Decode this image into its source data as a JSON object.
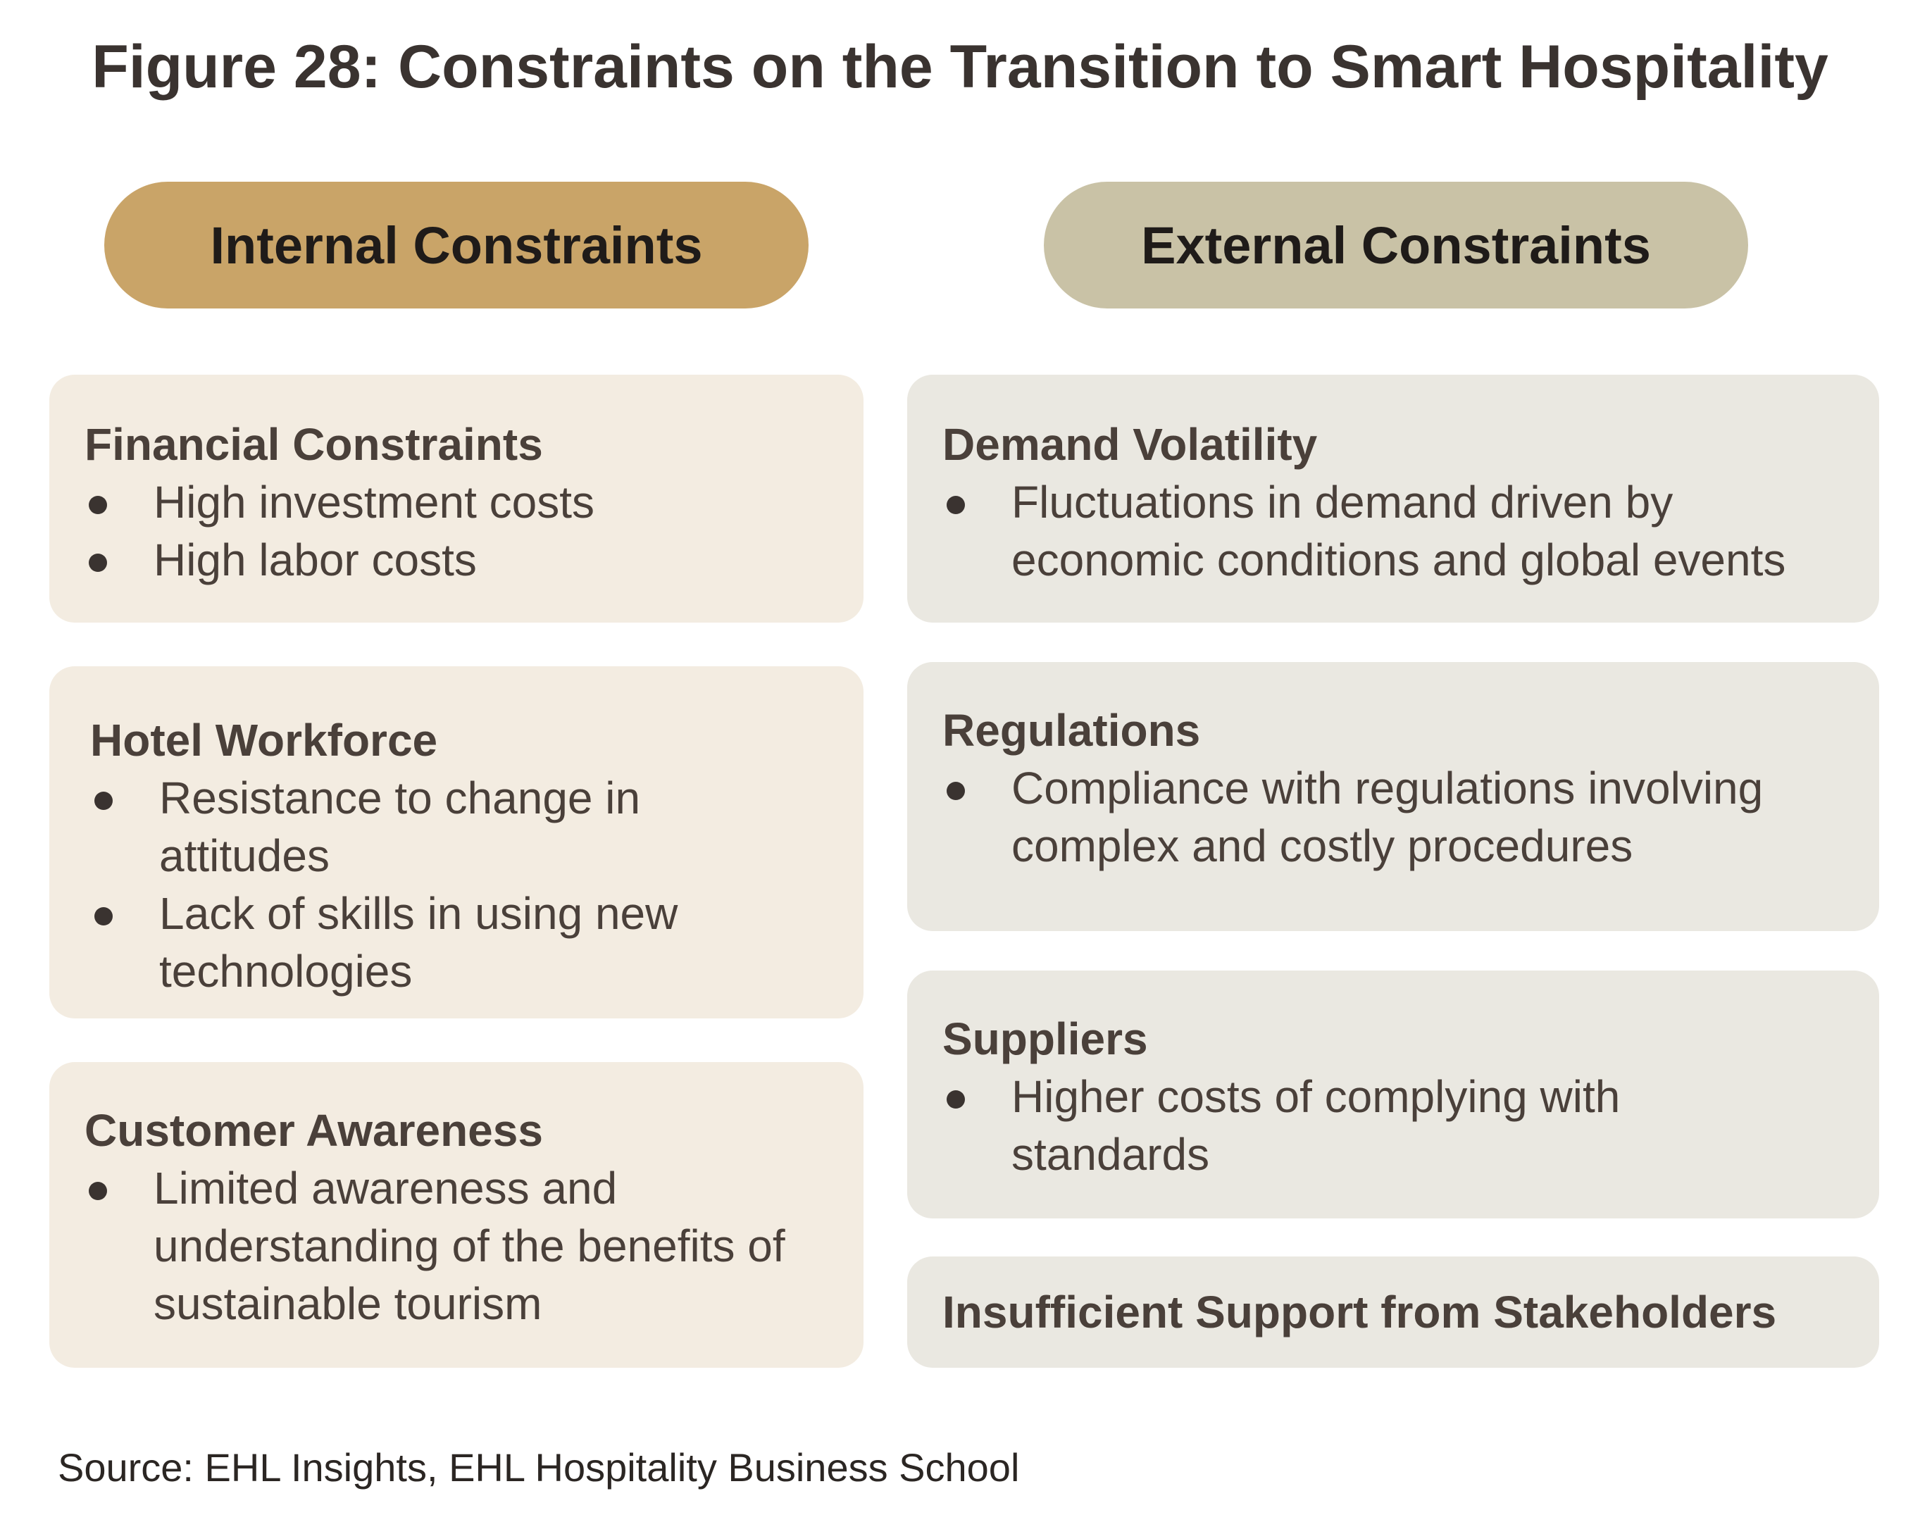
{
  "title": "Figure 28: Constraints on the Transition to Smart Hospitality",
  "columns": {
    "internal": {
      "heading": "Internal Constraints",
      "color": "#c9a468",
      "box_color": "#f3ece1",
      "groups": [
        {
          "title": "Financial Constraints",
          "bullets": [
            "High investment costs",
            "High labor costs"
          ]
        },
        {
          "title": "Hotel Workforce",
          "bullets": [
            "Resistance to change in attitudes",
            "Lack of skills in using new technologies"
          ]
        },
        {
          "title": "Customer Awareness",
          "bullets": [
            "Limited awareness and understanding of the benefits of sustainable tourism"
          ]
        }
      ]
    },
    "external": {
      "heading": "External Constraints",
      "color": "#c9c2a6",
      "box_color": "#eae8e1",
      "groups": [
        {
          "title": "Demand Volatility",
          "bullets": [
            "Fluctuations in demand driven by economic conditions and global events"
          ]
        },
        {
          "title": "Regulations",
          "bullets": [
            "Compliance with regulations involving complex and costly procedures"
          ]
        },
        {
          "title": "Suppliers",
          "bullets": [
            "Higher costs of complying with standards"
          ]
        },
        {
          "title": "Insufficient Support from Stakeholders",
          "bullets": []
        }
      ]
    }
  },
  "source": "Source: EHL Insights, EHL Hospitality Business School"
}
